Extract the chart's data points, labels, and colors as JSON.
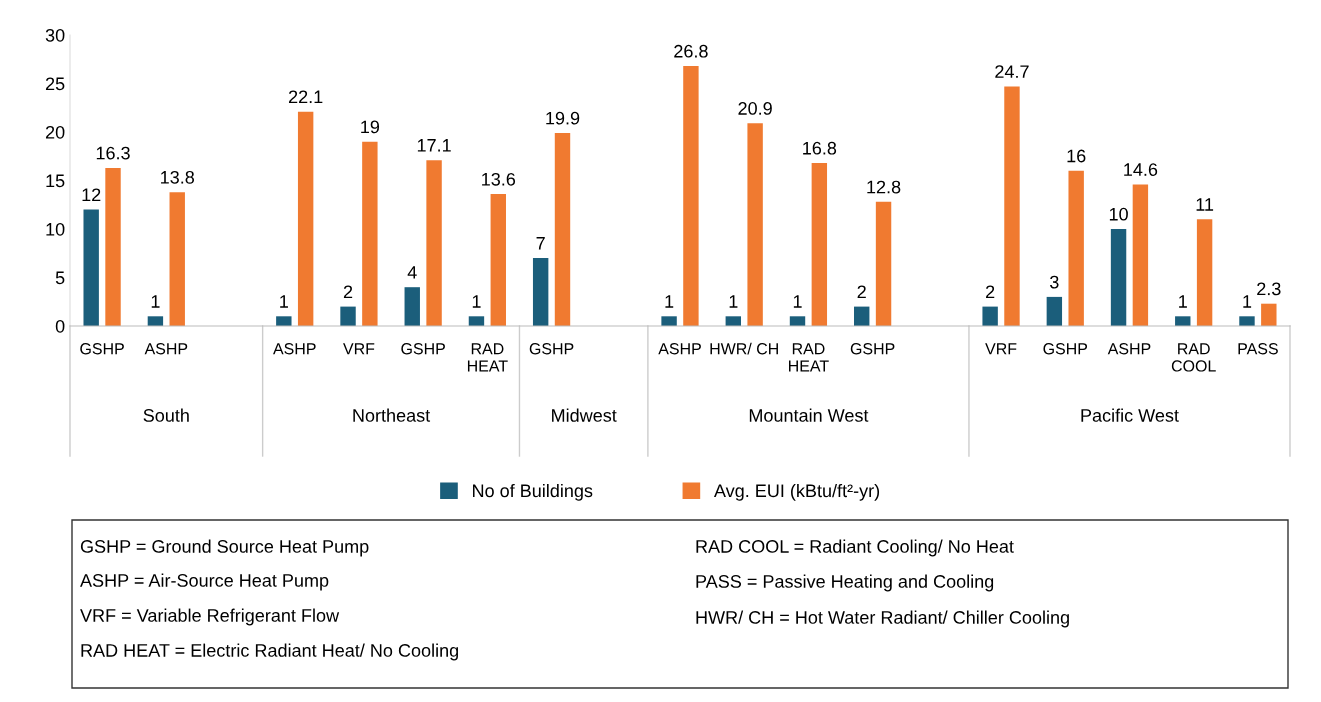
{
  "chart_data": {
    "type": "bar",
    "categories": [
      "GSHP",
      "ASHP",
      null,
      "ASHP",
      "VRF",
      "GSHP",
      "RAD\nHEAT",
      "GSHP",
      null,
      "ASHP",
      "HWR/ CH",
      "RAD\nHEAT",
      "GSHP",
      null,
      "VRF",
      "GSHP",
      "ASHP",
      "RAD\nCOOL",
      "PASS"
    ],
    "series": [
      {
        "name": "No of Buildings",
        "color": "#1b5e7b",
        "values": [
          12,
          1,
          null,
          1,
          2,
          4,
          1,
          7,
          null,
          1,
          1,
          1,
          2,
          null,
          2,
          3,
          10,
          1,
          1
        ]
      },
      {
        "name": "Avg. EUI (kBtu/ft²-yr)",
        "color": "#f07a30",
        "values": [
          16.3,
          13.8,
          null,
          22.1,
          19,
          17.1,
          13.6,
          19.9,
          null,
          26.8,
          20.9,
          16.8,
          12.8,
          null,
          24.7,
          16,
          14.6,
          11,
          2.3
        ]
      }
    ],
    "ylim": [
      0,
      30
    ],
    "yticks": [
      0,
      5,
      10,
      15,
      20,
      25,
      30
    ],
    "data_labels": true,
    "legend": "bottom",
    "grid": false,
    "annotations": [
      "South",
      "Northeast",
      "Midwest",
      "Mountain West",
      "Pacific West",
      "GSHP = Ground Source Heat Pump",
      "ASHP = Air-Source Heat Pump",
      "VRF = Variable Refrigerant Flow",
      "RAD HEAT = Electric Radiant Heat/ No Cooling",
      "RAD COOL = Radiant Cooling/ No Heat",
      "PASS = Passive Heating and Cooling",
      "HWR/ CH = Hot Water Radiant/ Chiller Cooling"
    ]
  }
}
